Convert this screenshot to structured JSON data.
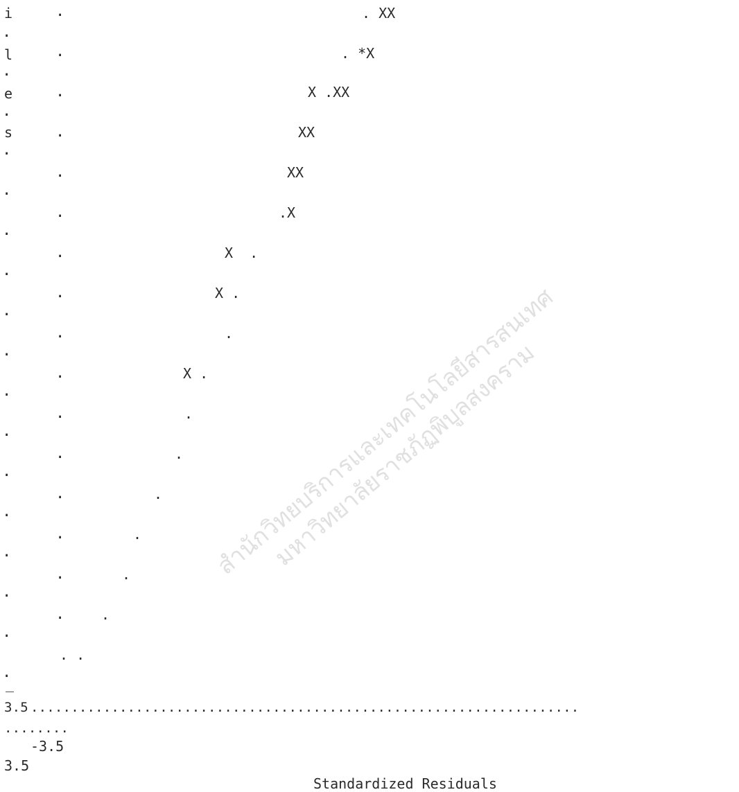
{
  "axis_letters": [
    "i",
    "l",
    "e",
    "s"
  ],
  "row_markers": [
    ". XX",
    ". *X",
    "X .XX",
    "XX",
    "XX",
    ".X",
    "X  .",
    "X .",
    ".",
    "X .",
    ".",
    ".",
    ".",
    ".",
    ".",
    ".",
    ". ."
  ],
  "baseline_label": "3.5",
  "baseline_dots": "....................................................................",
  "baseline_dots_2": "........",
  "x_min_label": "-3.5",
  "x_max_label": "3.5",
  "dash_label": "_",
  "x_axis_title": "Standardized Residuals",
  "watermark_line_1": "สำนักวิทยบริการและเทคโนโลยีสารสนเทศ",
  "watermark_line_2": "มหาวิทยาลัยราชภัฏพิบูลสงคราม"
}
